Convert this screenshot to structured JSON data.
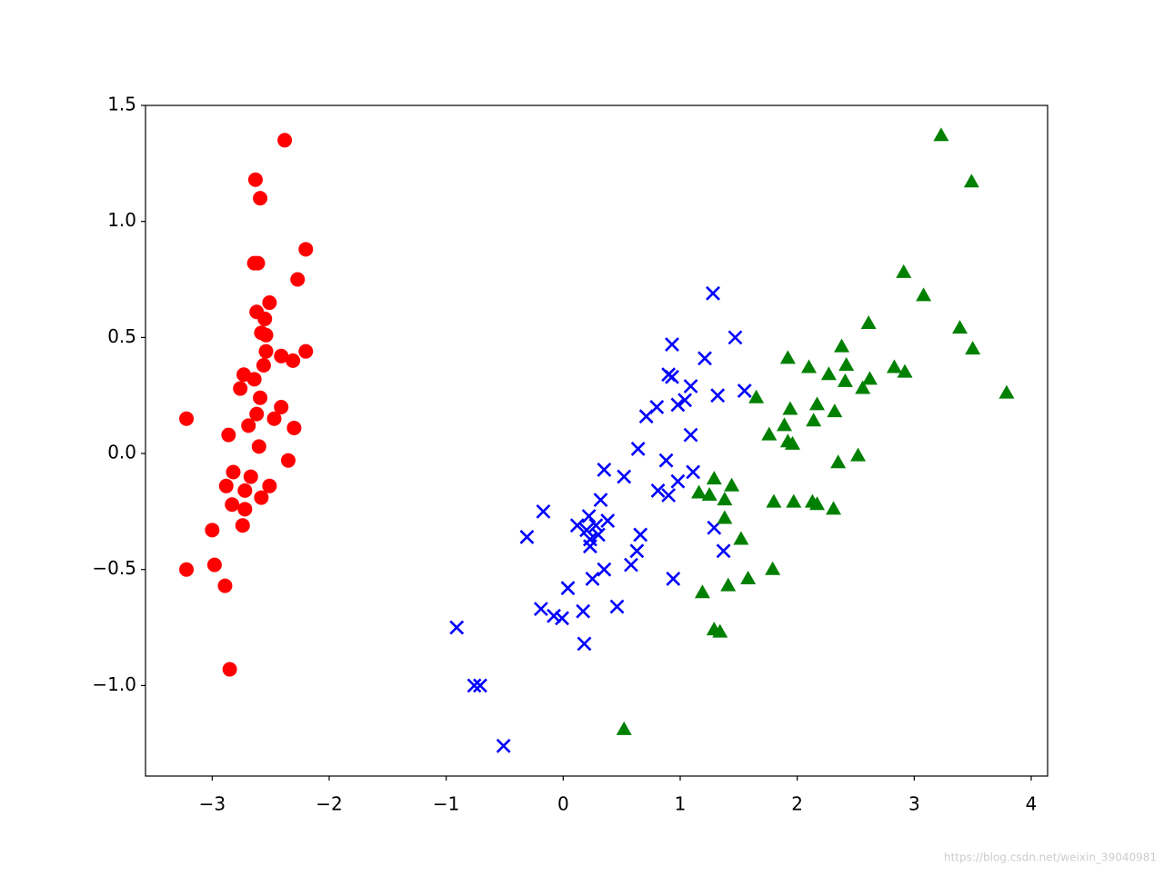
{
  "chart_data": {
    "type": "scatter",
    "xlim": [
      -3.57,
      4.14
    ],
    "ylim": [
      -1.39,
      1.5
    ],
    "xticks": [
      {
        "value": -3,
        "label": "−3"
      },
      {
        "value": -2,
        "label": "−2"
      },
      {
        "value": -1,
        "label": "−1"
      },
      0,
      1,
      2,
      3,
      4
    ],
    "yticks": [
      {
        "value": -1.0,
        "label": "−1.0"
      },
      {
        "value": -0.5,
        "label": "−0.5"
      },
      {
        "value": 0.0,
        "label": "0.0"
      },
      {
        "value": 0.5,
        "label": "0.5"
      },
      {
        "value": 1.0,
        "label": "1.0"
      },
      {
        "value": 1.5,
        "label": "1.5"
      }
    ],
    "grid": false,
    "watermark": "https://blog.csdn.net/weixin_39040981",
    "series": [
      {
        "color": "#ff0000",
        "marker": "circle",
        "x": [
          -3.22,
          -2.38,
          -2.63,
          -2.59,
          -2.2,
          -2.64,
          -2.61,
          -2.27,
          -2.51,
          -2.62,
          -2.55,
          -2.58,
          -2.54,
          -2.54,
          -2.2,
          -2.41,
          -2.31,
          -2.56,
          -2.73,
          -2.64,
          -2.76,
          -2.59,
          -2.41,
          -2.62,
          -2.47,
          -2.69,
          -2.3,
          -2.86,
          -2.6,
          -2.35,
          -2.82,
          -2.67,
          -2.88,
          -2.51,
          -2.72,
          -2.83,
          -2.58,
          -2.72,
          -2.74,
          -3.0,
          -2.98,
          -3.22,
          -2.89,
          -2.85
        ],
        "values": [
          0.15,
          1.35,
          1.18,
          1.1,
          0.88,
          0.82,
          0.82,
          0.75,
          0.65,
          0.61,
          0.58,
          0.52,
          0.51,
          0.44,
          0.44,
          0.42,
          0.4,
          0.38,
          0.34,
          0.32,
          0.28,
          0.24,
          0.2,
          0.17,
          0.15,
          0.12,
          0.11,
          0.08,
          0.03,
          -0.03,
          -0.08,
          -0.1,
          -0.14,
          -0.14,
          -0.16,
          -0.22,
          -0.19,
          -0.24,
          -0.31,
          -0.33,
          -0.48,
          -0.5,
          -0.57,
          -0.93
        ]
      },
      {
        "color": "#0000ff",
        "marker": "x",
        "x": [
          1.28,
          1.47,
          0.93,
          1.21,
          0.9,
          0.93,
          1.09,
          1.32,
          1.55,
          1.04,
          0.98,
          0.8,
          0.71,
          1.09,
          0.64,
          0.52,
          0.35,
          0.88,
          1.11,
          0.98,
          0.81,
          0.9,
          -0.17,
          0.12,
          0.22,
          0.32,
          0.38,
          0.2,
          0.3,
          1.29,
          -0.31,
          0.66,
          0.23,
          1.37,
          0.58,
          0.63,
          0.35,
          0.94,
          0.25,
          0.04,
          -0.19,
          -0.08,
          -0.01,
          0.17,
          0.46,
          0.18,
          -0.91,
          -0.76,
          -0.71,
          -0.51,
          0.23,
          0.28
        ],
        "values": [
          0.69,
          0.5,
          0.47,
          0.41,
          0.34,
          0.33,
          0.29,
          0.25,
          0.27,
          0.23,
          0.21,
          0.2,
          0.16,
          0.08,
          0.02,
          -0.1,
          -0.07,
          -0.03,
          -0.08,
          -0.12,
          -0.16,
          -0.18,
          -0.25,
          -0.31,
          -0.27,
          -0.2,
          -0.29,
          -0.33,
          -0.35,
          -0.32,
          -0.36,
          -0.35,
          -0.4,
          -0.42,
          -0.48,
          -0.42,
          -0.5,
          -0.54,
          -0.54,
          -0.58,
          -0.67,
          -0.7,
          -0.71,
          -0.68,
          -0.66,
          -0.82,
          -0.75,
          -1.0,
          -1.0,
          -1.26,
          -0.37,
          -0.31
        ]
      },
      {
        "color": "#008000",
        "marker": "triangle",
        "x": [
          3.23,
          3.49,
          2.91,
          3.08,
          2.61,
          3.39,
          2.38,
          3.5,
          1.92,
          2.42,
          2.1,
          2.83,
          2.92,
          2.27,
          2.62,
          2.41,
          2.56,
          3.79,
          1.65,
          1.94,
          2.17,
          2.32,
          1.89,
          2.14,
          1.76,
          1.92,
          1.96,
          2.52,
          2.35,
          1.29,
          1.16,
          1.25,
          1.44,
          1.38,
          1.97,
          1.8,
          2.13,
          2.17,
          2.31,
          1.38,
          1.52,
          1.79,
          1.58,
          1.41,
          1.19,
          1.29,
          1.34,
          0.52
        ],
        "values": [
          1.37,
          1.17,
          0.78,
          0.68,
          0.56,
          0.54,
          0.46,
          0.45,
          0.41,
          0.38,
          0.37,
          0.37,
          0.35,
          0.34,
          0.32,
          0.31,
          0.28,
          0.26,
          0.24,
          0.19,
          0.21,
          0.18,
          0.12,
          0.14,
          0.08,
          0.05,
          0.04,
          -0.01,
          -0.04,
          -0.11,
          -0.17,
          -0.18,
          -0.14,
          -0.2,
          -0.21,
          -0.21,
          -0.21,
          -0.22,
          -0.24,
          -0.28,
          -0.37,
          -0.5,
          -0.54,
          -0.57,
          -0.6,
          -0.76,
          -0.77,
          -1.19
        ]
      }
    ]
  }
}
